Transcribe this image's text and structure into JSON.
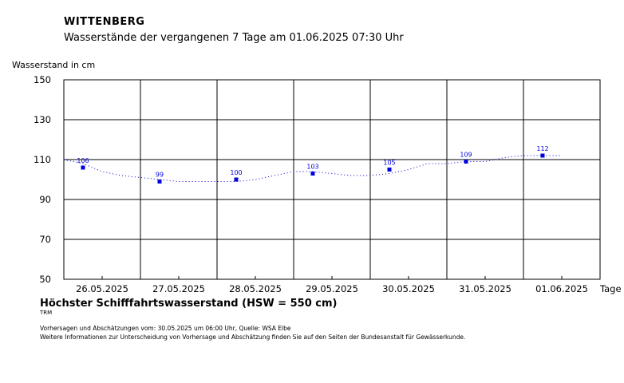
{
  "header": {
    "station": "WITTENBERG",
    "subtitle": "Wasserstände der vergangenen 7 Tage am 01.06.2025 07:30 Uhr"
  },
  "footer": {
    "hsw": "Höchster Schifffahrtswasserstand (HSW = 550 cm)",
    "trm": "TRM",
    "note1": "Vorhersagen und Abschätzungen vom: 30.05.2025 um 06:00 Uhr, Quelle: WSA Elbe",
    "note2": "Weitere Informationen zur Unterscheidung von Vorhersage und Abschätzung finden Sie auf den Seiten der Bundesanstalt für Gewässerkunde."
  },
  "colors": {
    "series": "#0000dd",
    "grid": "#000000"
  },
  "chart_data": {
    "type": "line",
    "ylabel": "Wasserstand in cm",
    "xlabel": "Tage",
    "ylim": [
      50,
      150
    ],
    "yticks": [
      50,
      70,
      90,
      110,
      130,
      150
    ],
    "xlim": [
      0,
      7
    ],
    "xticks": [
      {
        "label": "26.05.2025",
        "x": 0.5
      },
      {
        "label": "27.05.2025",
        "x": 1.5
      },
      {
        "label": "28.05.2025",
        "x": 2.5
      },
      {
        "label": "29.05.2025",
        "x": 3.5
      },
      {
        "label": "30.05.2025",
        "x": 4.5
      },
      {
        "label": "31.05.2025",
        "x": 5.5
      },
      {
        "label": "01.06.2025",
        "x": 6.5
      }
    ],
    "grid": true,
    "series": [
      {
        "style": "dotted",
        "x": [
          0.0,
          0.25,
          0.5,
          0.75,
          1.0,
          1.25,
          1.5,
          1.75,
          2.0,
          2.25,
          2.5,
          2.75,
          3.0,
          3.25,
          3.5,
          3.75,
          4.0,
          4.25,
          4.5,
          4.75,
          5.0,
          5.25,
          5.5,
          5.75,
          6.0,
          6.25,
          6.5
        ],
        "values": [
          110,
          108,
          104,
          102,
          101,
          100,
          99,
          99,
          99,
          99,
          100,
          102,
          104,
          104,
          103,
          102,
          102,
          103,
          105,
          108,
          108,
          109,
          109,
          111,
          112,
          112,
          112
        ]
      }
    ],
    "markers": [
      {
        "x": 0.25,
        "y": 106,
        "label": "106"
      },
      {
        "x": 1.25,
        "y": 99,
        "label": "99"
      },
      {
        "x": 2.25,
        "y": 100,
        "label": "100"
      },
      {
        "x": 3.25,
        "y": 103,
        "label": "103"
      },
      {
        "x": 4.25,
        "y": 105,
        "label": "105"
      },
      {
        "x": 5.25,
        "y": 109,
        "label": "109"
      },
      {
        "x": 6.25,
        "y": 112,
        "label": "112"
      }
    ]
  }
}
